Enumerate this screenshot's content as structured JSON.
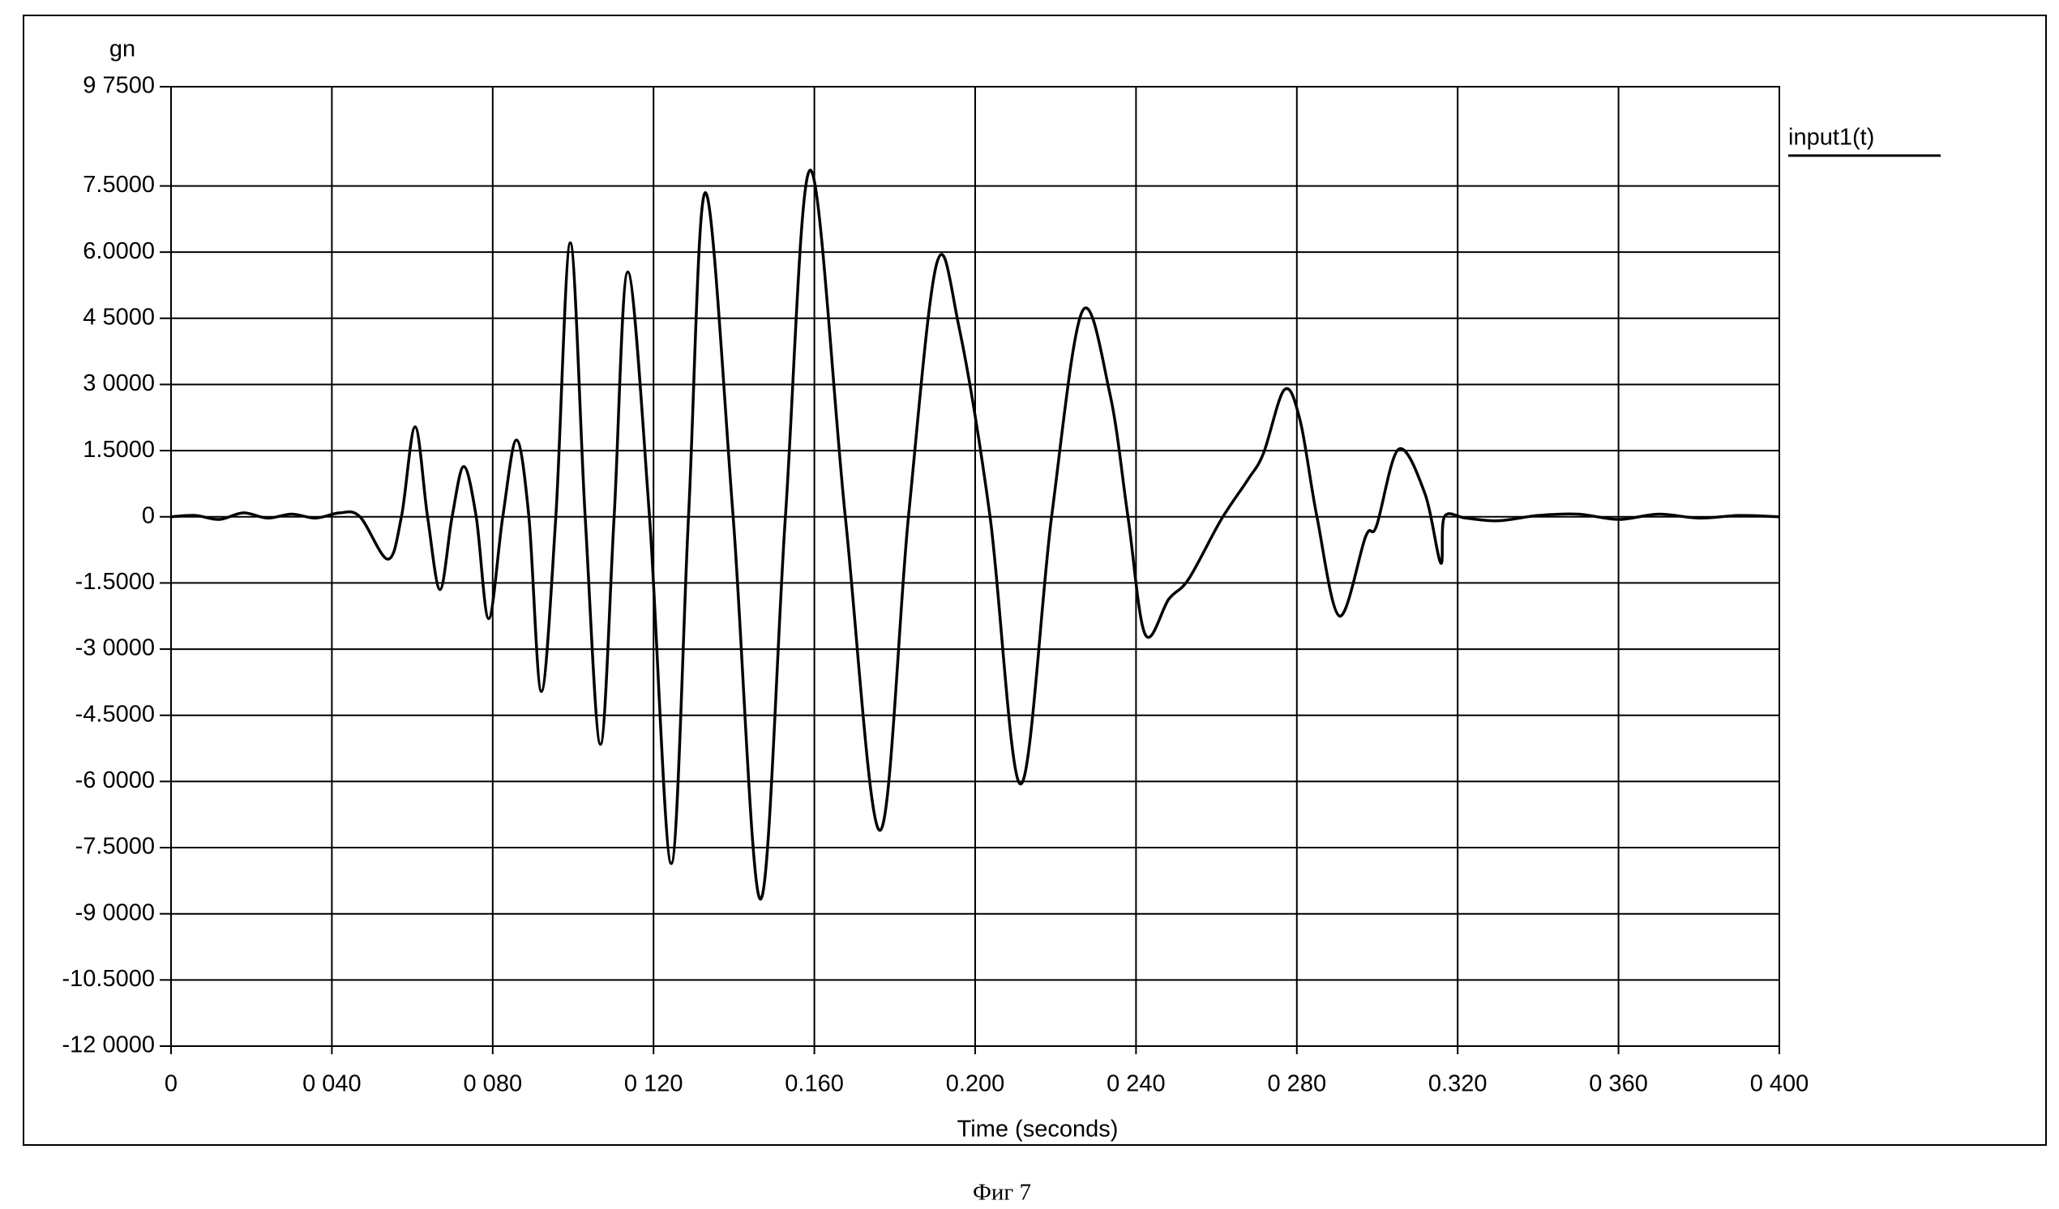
{
  "chart_data": {
    "type": "line",
    "y_axis_label": "gn",
    "x_axis_label": "Time (seconds)",
    "caption": "Фиг 7",
    "xlim": [
      0,
      0.4
    ],
    "ylim": [
      -12,
      9.75
    ],
    "grid": true,
    "legend": "top-right",
    "xticks": [
      0,
      {
        "value": 0.04,
        "label": "0 040"
      },
      {
        "value": 0.08,
        "label": "0 080"
      },
      {
        "value": 0.12,
        "label": "0 120"
      },
      {
        "value": 0.16,
        "label": "0.160"
      },
      {
        "value": 0.2,
        "label": "0.200"
      },
      {
        "value": 0.24,
        "label": "0 240"
      },
      {
        "value": 0.28,
        "label": "0 280"
      },
      {
        "value": 0.32,
        "label": "0.320"
      },
      {
        "value": 0.36,
        "label": "0 360"
      },
      {
        "value": 0.4,
        "label": "0 400"
      }
    ],
    "yticks": [
      {
        "value": 9.75,
        "label": "9 7500"
      },
      {
        "value": 7.5,
        "label": "7.5000"
      },
      {
        "value": 6,
        "label": "6.0000"
      },
      {
        "value": 4.5,
        "label": "4 5000"
      },
      {
        "value": 3,
        "label": "3 0000"
      },
      {
        "value": 1.5,
        "label": "1.5000"
      },
      0,
      {
        "value": -1.5,
        "label": "-1.5000"
      },
      {
        "value": -3,
        "label": "-3 0000"
      },
      {
        "value": -4.5,
        "label": "-4.5000"
      },
      {
        "value": -6,
        "label": "-6 0000"
      },
      {
        "value": -7.5,
        "label": "-7.5000"
      },
      {
        "value": -9,
        "label": "-9 0000"
      },
      {
        "value": -10.5,
        "label": "-10.5000"
      },
      {
        "value": -12,
        "label": "-12 0000"
      }
    ],
    "x": [
      0,
      0.006,
      0.012,
      0.018,
      0.024,
      0.03,
      0.036,
      0.042,
      0.047,
      0.0539,
      0.0573,
      0.0607,
      0.0638,
      0.0669,
      0.0699,
      0.0728,
      0.0759,
      0.079,
      0.0825,
      0.0859,
      0.089,
      0.0921,
      0.0957,
      0.0993,
      0.103,
      0.1068,
      0.1102,
      0.1136,
      0.119,
      0.1244,
      0.1287,
      0.1329,
      0.1398,
      0.1466,
      0.1528,
      0.159,
      0.1677,
      0.1763,
      0.1834,
      0.1904,
      0.196,
      0.2037,
      0.2113,
      0.219,
      0.2266,
      0.2335,
      0.238,
      0.2423,
      0.2482,
      0.2531,
      0.2612,
      0.2678,
      0.2717,
      0.2769,
      0.2808,
      0.285,
      0.2906,
      0.2971,
      0.2998,
      0.3053,
      0.3118,
      0.3158,
      0.3167,
      0.322,
      0.33,
      0.34,
      0.35,
      0.36,
      0.37,
      0.38,
      0.39,
      0.4
    ],
    "series": [
      {
        "name": "input1(t)",
        "color": "#000000",
        "values": [
          0,
          0.03,
          -0.06,
          0.09,
          -0.03,
          0.06,
          -0.03,
          0.09,
          0,
          -0.96,
          0,
          2.04,
          0,
          -1.65,
          0,
          1.14,
          0,
          -2.31,
          0,
          1.74,
          0,
          -3.96,
          0,
          6.21,
          0,
          -5.16,
          0,
          5.55,
          0,
          -7.86,
          0,
          7.35,
          0,
          -8.67,
          0,
          7.86,
          0,
          -7.11,
          0,
          5.73,
          4.29,
          0,
          -6.06,
          0,
          4.65,
          2.79,
          0,
          -2.67,
          -1.86,
          -1.41,
          -0.06,
          0.84,
          1.44,
          2.88,
          2.19,
          0,
          -2.25,
          -0.45,
          -0.21,
          1.53,
          0.54,
          -1.05,
          0,
          -0.03,
          -0.09,
          0.03,
          0.06,
          -0.06,
          0.06,
          -0.03,
          0.03,
          0
        ]
      }
    ]
  }
}
